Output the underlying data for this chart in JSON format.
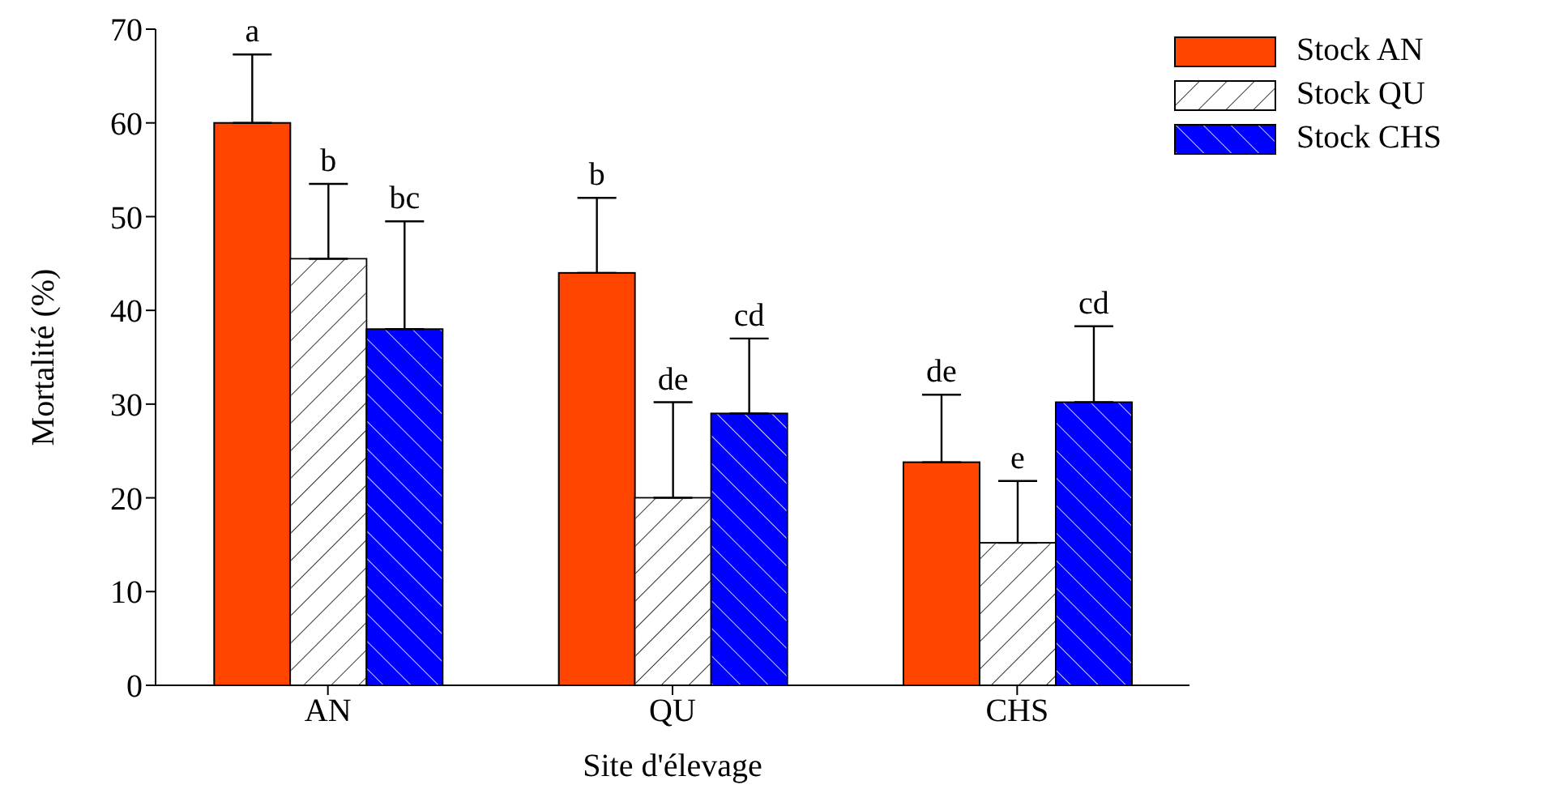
{
  "chart_data": {
    "type": "bar",
    "xlabel": "Site d'élevage",
    "ylabel": "Mortalité (%)",
    "categories": [
      "AN",
      "QU",
      "CHS"
    ],
    "series": [
      {
        "name": "Stock AN",
        "color": "#ff4500",
        "values": [
          60,
          44,
          23.8
        ],
        "errors": [
          7.3,
          8,
          7.2
        ]
      },
      {
        "name": "Stock QU",
        "color": "#ffffff",
        "values": [
          45.5,
          20,
          15.2
        ],
        "errors": [
          8,
          10.2,
          6.6
        ]
      },
      {
        "name": "Stock CHS",
        "color": "#0000ff",
        "values": [
          38,
          29,
          30.2
        ],
        "errors": [
          11.5,
          8,
          8.1
        ]
      }
    ],
    "ylim": [
      0,
      70
    ],
    "yticks": [
      0,
      10,
      20,
      30,
      40,
      50,
      60,
      70
    ],
    "grid": false,
    "legend": "top right",
    "annotations": [
      "a",
      "b",
      "bc",
      "b",
      "de",
      "cd",
      "de",
      "e",
      "cd"
    ]
  }
}
